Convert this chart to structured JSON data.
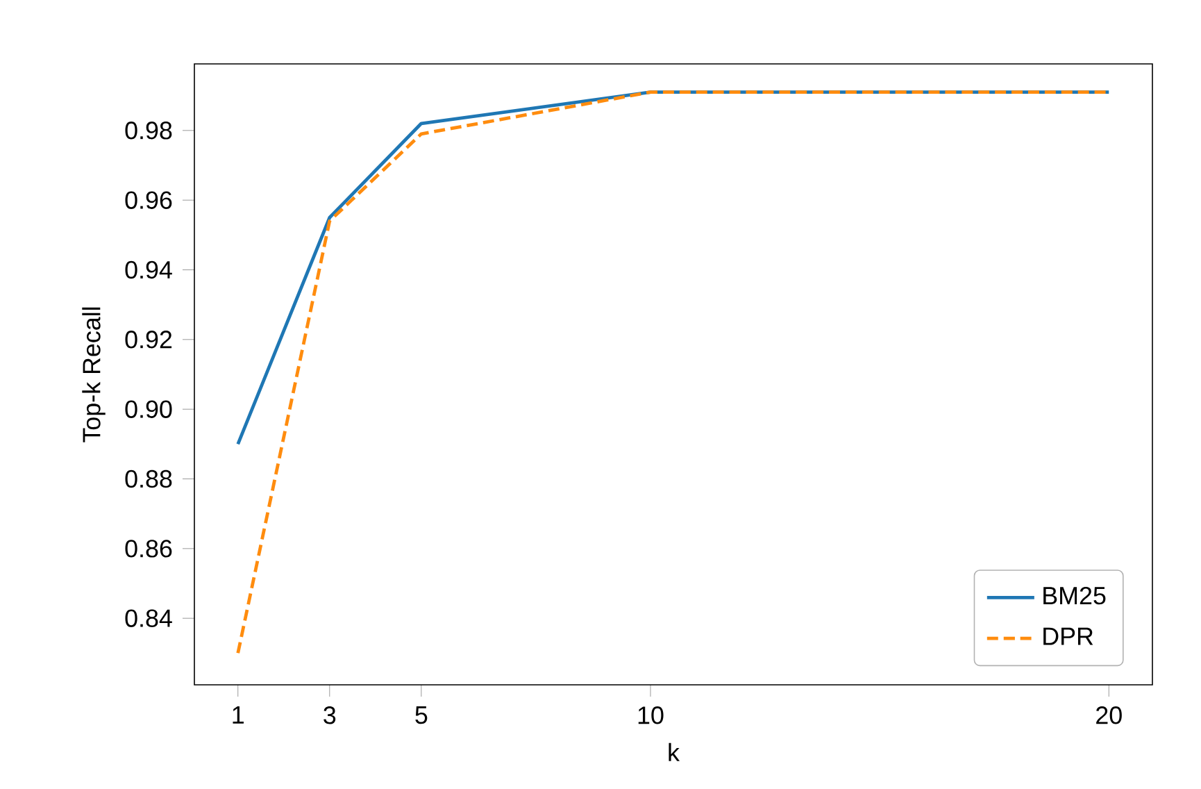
{
  "chart_data": {
    "type": "line",
    "xlabel": "k",
    "ylabel": "Top-k Recall",
    "x": [
      1,
      3,
      5,
      10,
      20
    ],
    "series": [
      {
        "name": "BM25",
        "color": "#1f77b4",
        "line_style": "solid",
        "values": [
          0.89,
          0.955,
          0.982,
          0.991,
          0.991
        ]
      },
      {
        "name": "DPR",
        "color": "#ff8c0e",
        "line_style": "dashed",
        "values": [
          0.83,
          0.954,
          0.979,
          0.991,
          0.991
        ]
      }
    ],
    "xlim": [
      0.05,
      20.95
    ],
    "ylim": [
      0.8209,
      0.9991
    ],
    "xticks": [
      1,
      3,
      5,
      10,
      20
    ],
    "yticks": [
      0.84,
      0.86,
      0.88,
      {
        "value": 0.9,
        "label": "0.90"
      },
      0.92,
      0.94,
      0.96,
      0.98
    ],
    "legend": "bottom right"
  }
}
